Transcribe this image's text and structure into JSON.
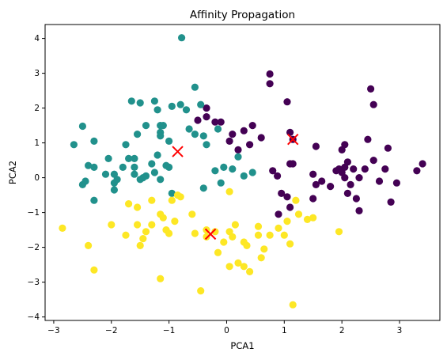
{
  "chart_data": {
    "type": "scatter",
    "title": "Affinity Propagation",
    "xlabel": "PCA1",
    "ylabel": "PCA2",
    "xlim": [
      -3.15,
      3.7
    ],
    "ylim": [
      -4.1,
      4.4
    ],
    "xticks": [
      -3,
      -2,
      -1,
      0,
      1,
      2,
      3
    ],
    "yticks": [
      -4,
      -3,
      -2,
      -1,
      0,
      1,
      2,
      3,
      4
    ],
    "grid": false,
    "series": [
      {
        "color": "#440154",
        "points": [
          [
            0.75,
            2.98
          ],
          [
            0.75,
            2.7
          ],
          [
            1.05,
            2.18
          ],
          [
            1.1,
            1.3
          ],
          [
            1.15,
            1.1
          ],
          [
            1.1,
            0.4
          ],
          [
            1.15,
            0.4
          ],
          [
            0.8,
            0.2
          ],
          [
            0.88,
            0.05
          ],
          [
            0.05,
            1.05
          ],
          [
            0.2,
            0.8
          ],
          [
            0.4,
            0.95
          ],
          [
            0.45,
            1.5
          ],
          [
            0.3,
            1.35
          ],
          [
            -0.1,
            1.6
          ],
          [
            -0.2,
            1.6
          ],
          [
            -0.35,
            1.75
          ],
          [
            -0.5,
            1.65
          ],
          [
            -0.35,
            2.0
          ],
          [
            0.1,
            1.25
          ],
          [
            0.6,
            1.15
          ],
          [
            0.95,
            -0.45
          ],
          [
            1.05,
            -0.55
          ],
          [
            1.1,
            -0.85
          ],
          [
            0.9,
            -1.05
          ],
          [
            1.5,
            0.1
          ],
          [
            1.55,
            0.9
          ],
          [
            1.55,
            -0.2
          ],
          [
            1.65,
            -0.1
          ],
          [
            1.8,
            -0.25
          ],
          [
            1.9,
            0.2
          ],
          [
            1.95,
            0.25
          ],
          [
            2.0,
            0.15
          ],
          [
            2.0,
            0.8
          ],
          [
            2.05,
            0.95
          ],
          [
            2.05,
            0.3
          ],
          [
            2.05,
            0.0
          ],
          [
            2.1,
            0.45
          ],
          [
            2.1,
            -0.45
          ],
          [
            2.15,
            -0.2
          ],
          [
            2.2,
            0.25
          ],
          [
            2.25,
            -0.6
          ],
          [
            2.3,
            -0.95
          ],
          [
            2.3,
            0.0
          ],
          [
            2.4,
            0.25
          ],
          [
            2.45,
            1.1
          ],
          [
            2.5,
            2.55
          ],
          [
            2.55,
            2.1
          ],
          [
            2.55,
            0.5
          ],
          [
            2.65,
            -0.1
          ],
          [
            2.75,
            0.25
          ],
          [
            2.8,
            0.85
          ],
          [
            2.85,
            -0.7
          ],
          [
            2.95,
            -0.15
          ],
          [
            3.3,
            0.2
          ],
          [
            3.4,
            0.4
          ],
          [
            1.5,
            -0.6
          ]
        ]
      },
      {
        "color": "#21918c",
        "points": [
          [
            -0.78,
            4.02
          ],
          [
            -2.5,
            1.48
          ],
          [
            -2.65,
            0.95
          ],
          [
            -2.3,
            1.05
          ],
          [
            -2.4,
            0.35
          ],
          [
            -2.3,
            0.3
          ],
          [
            -2.5,
            -0.2
          ],
          [
            -2.45,
            -0.1
          ],
          [
            -2.3,
            -0.65
          ],
          [
            -2.1,
            0.1
          ],
          [
            -2.05,
            0.55
          ],
          [
            -1.95,
            -0.15
          ],
          [
            -1.95,
            -0.35
          ],
          [
            -1.95,
            0.1
          ],
          [
            -1.9,
            -0.05
          ],
          [
            -1.8,
            0.3
          ],
          [
            -1.75,
            0.95
          ],
          [
            -1.7,
            0.55
          ],
          [
            -1.65,
            2.2
          ],
          [
            -1.5,
            2.15
          ],
          [
            -1.4,
            1.5
          ],
          [
            -1.25,
            2.2
          ],
          [
            -1.2,
            1.95
          ],
          [
            -1.15,
            1.5
          ],
          [
            -1.15,
            1.3
          ],
          [
            -1.1,
            1.5
          ],
          [
            -1.15,
            1.2
          ],
          [
            -1.25,
            0.15
          ],
          [
            -1.3,
            0.4
          ],
          [
            -1.4,
            0.05
          ],
          [
            -1.55,
            1.25
          ],
          [
            -1.6,
            0.55
          ],
          [
            -1.6,
            0.3
          ],
          [
            -1.6,
            0.1
          ],
          [
            -1.5,
            -0.05
          ],
          [
            -1.45,
            0.0
          ],
          [
            -1.15,
            -0.05
          ],
          [
            -1.0,
            1.05
          ],
          [
            -0.95,
            2.05
          ],
          [
            -0.8,
            2.1
          ],
          [
            -0.7,
            1.95
          ],
          [
            -0.65,
            1.4
          ],
          [
            -0.55,
            2.6
          ],
          [
            -0.45,
            2.1
          ],
          [
            -0.4,
            1.2
          ],
          [
            -0.35,
            0.95
          ],
          [
            -0.2,
            0.2
          ],
          [
            -0.1,
            -0.15
          ],
          [
            -0.4,
            -0.3
          ],
          [
            -0.15,
            1.4
          ],
          [
            -0.05,
            0.3
          ],
          [
            0.1,
            0.25
          ],
          [
            0.2,
            0.6
          ],
          [
            0.3,
            0.05
          ],
          [
            0.45,
            0.15
          ],
          [
            -0.55,
            1.25
          ],
          [
            -1.0,
            0.3
          ],
          [
            -0.95,
            -0.45
          ],
          [
            -1.05,
            0.35
          ],
          [
            -1.2,
            0.65
          ]
        ]
      },
      {
        "color": "#fde725",
        "points": [
          [
            -2.85,
            -1.45
          ],
          [
            -2.4,
            -1.95
          ],
          [
            -2.3,
            -2.65
          ],
          [
            -2.0,
            -1.35
          ],
          [
            -1.75,
            -1.65
          ],
          [
            -1.7,
            -0.75
          ],
          [
            -1.55,
            -0.85
          ],
          [
            -1.55,
            -1.35
          ],
          [
            -1.5,
            -1.95
          ],
          [
            -1.45,
            -1.75
          ],
          [
            -1.4,
            -1.55
          ],
          [
            -1.3,
            -1.35
          ],
          [
            -1.3,
            -0.65
          ],
          [
            -1.15,
            -1.05
          ],
          [
            -1.1,
            -1.15
          ],
          [
            -1.05,
            -1.5
          ],
          [
            -1.0,
            -1.6
          ],
          [
            -1.15,
            -2.9
          ],
          [
            -0.95,
            -0.65
          ],
          [
            -0.9,
            -1.25
          ],
          [
            -0.85,
            -0.5
          ],
          [
            -0.8,
            -0.55
          ],
          [
            -0.6,
            -1.05
          ],
          [
            -0.55,
            -1.6
          ],
          [
            -0.45,
            -3.25
          ],
          [
            -0.35,
            -1.5
          ],
          [
            -0.35,
            -1.7
          ],
          [
            -0.2,
            -1.55
          ],
          [
            -0.15,
            -2.15
          ],
          [
            -0.05,
            -1.85
          ],
          [
            0.05,
            -0.4
          ],
          [
            0.05,
            -1.55
          ],
          [
            0.05,
            -2.55
          ],
          [
            0.1,
            -1.7
          ],
          [
            0.15,
            -1.35
          ],
          [
            0.2,
            -2.45
          ],
          [
            0.3,
            -1.85
          ],
          [
            0.3,
            -2.55
          ],
          [
            0.35,
            -1.95
          ],
          [
            0.4,
            -2.7
          ],
          [
            0.55,
            -1.4
          ],
          [
            0.55,
            -1.65
          ],
          [
            0.6,
            -2.3
          ],
          [
            0.65,
            -2.05
          ],
          [
            0.75,
            -1.65
          ],
          [
            0.9,
            -1.45
          ],
          [
            1.0,
            -1.65
          ],
          [
            1.05,
            -1.25
          ],
          [
            1.1,
            -1.9
          ],
          [
            1.15,
            -3.65
          ],
          [
            1.2,
            -0.65
          ],
          [
            1.25,
            -1.05
          ],
          [
            1.4,
            -1.2
          ],
          [
            1.5,
            -1.15
          ],
          [
            1.95,
            -1.55
          ]
        ]
      }
    ],
    "centers": {
      "color": "#ff0000",
      "points": [
        [
          -0.85,
          0.75
        ],
        [
          1.15,
          1.1
        ],
        [
          -0.28,
          -1.62
        ]
      ]
    }
  }
}
